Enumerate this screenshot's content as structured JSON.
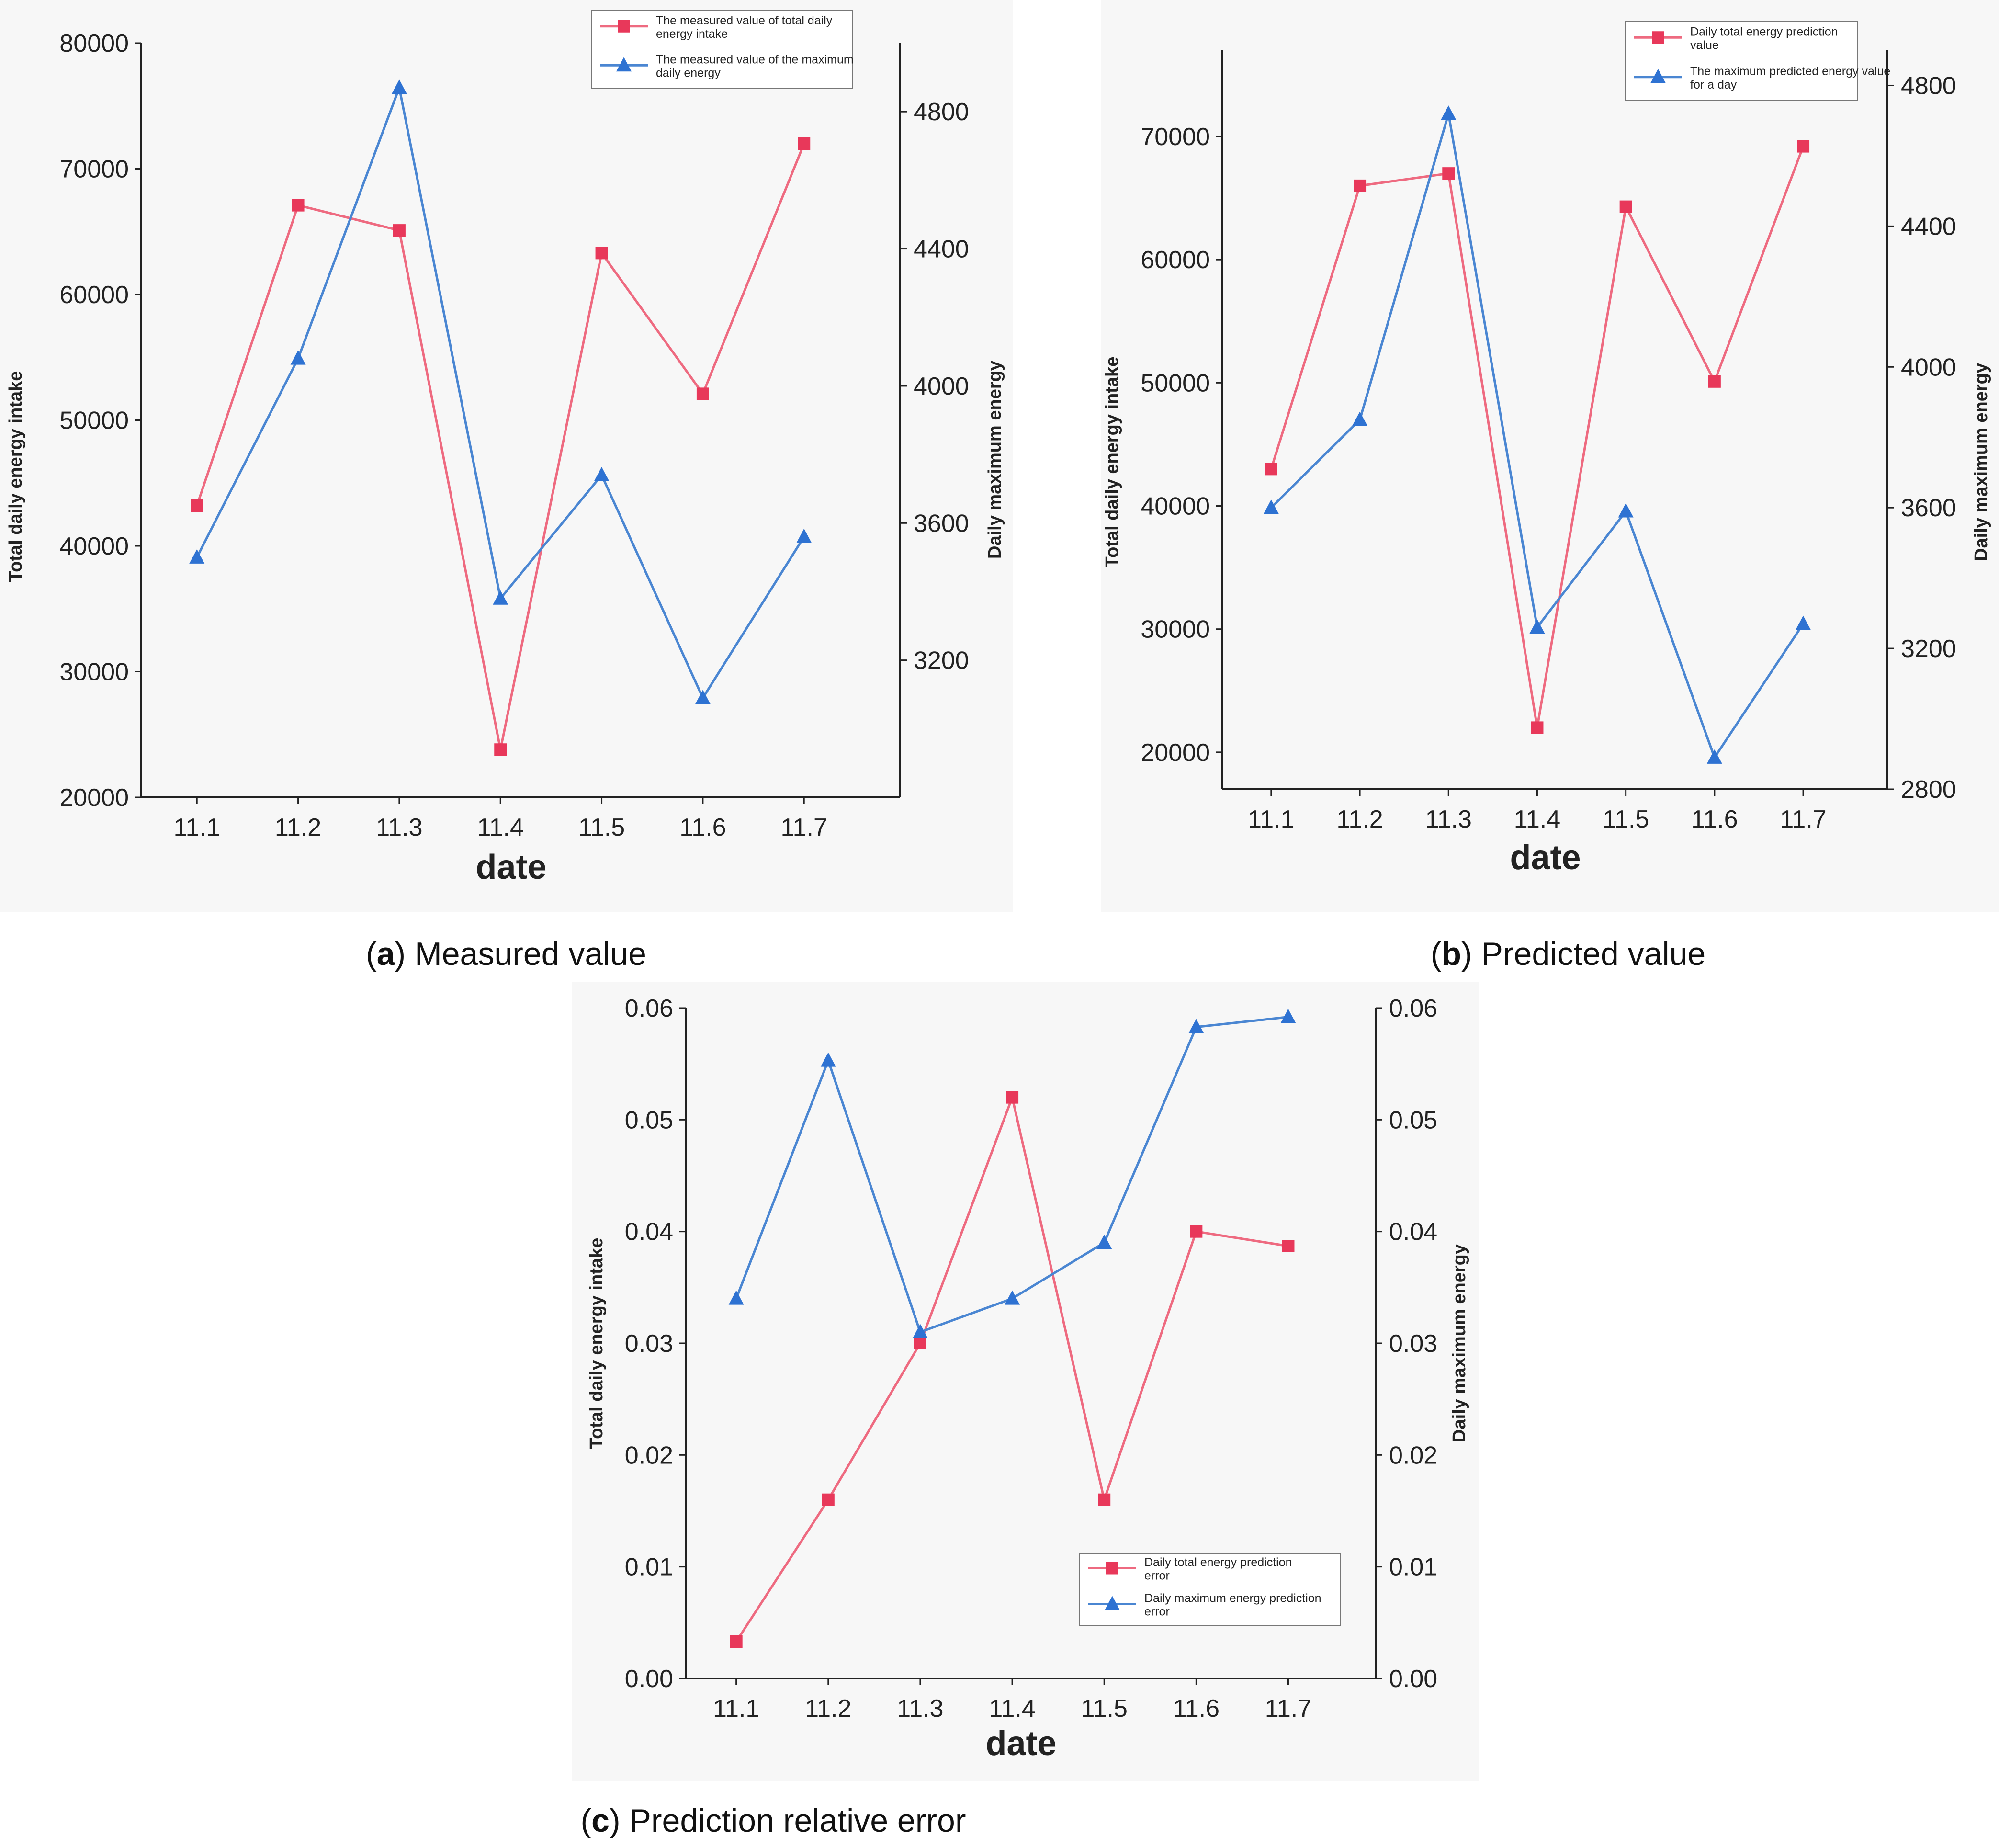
{
  "colors": {
    "series1": "#ee6a80",
    "series2": "#4a86d2",
    "marker1": "#e8385a",
    "marker2": "#2e72d2",
    "panel": "#f7f7f7",
    "axis": "#222222"
  },
  "chart_data": [
    {
      "type": "line",
      "panel_tag": "a",
      "caption": "Measured value",
      "xlabel": "date",
      "ylabel": "Total daily energy intake",
      "y2label": "Daily maximum energy",
      "categories": [
        "11.1",
        "11.2",
        "11.3",
        "11.4",
        "11.5",
        "11.6",
        "11.7"
      ],
      "ylim": [
        20000,
        80000
      ],
      "yticks": [
        "20000",
        "30000",
        "40000",
        "50000",
        "60000",
        "70000",
        "80000"
      ],
      "y2lim": [
        2800,
        5000
      ],
      "y2ticks": [
        "3200",
        "3600",
        "4000",
        "4400",
        "4800"
      ],
      "legend_position": "top-right",
      "series": [
        {
          "name": "The measured value of total daily energy intake",
          "axis": "left",
          "marker": "square",
          "values": [
            43200,
            67100,
            65100,
            23800,
            63300,
            52100,
            72000
          ]
        },
        {
          "name": "The measured value of the maximum daily energy",
          "axis": "right",
          "marker": "triangle",
          "values": [
            3500,
            4080,
            4870,
            3380,
            3740,
            3090,
            3560
          ]
        }
      ]
    },
    {
      "type": "line",
      "panel_tag": "b",
      "caption": "Predicted value",
      "xlabel": "date",
      "ylabel": "Total daily energy intake",
      "y2label": "Daily maximum energy",
      "categories": [
        "11.1",
        "11.2",
        "11.3",
        "11.4",
        "11.5",
        "11.6",
        "11.7"
      ],
      "ylim": [
        17000,
        77000
      ],
      "yticks": [
        "20000",
        "30000",
        "40000",
        "50000",
        "60000",
        "70000"
      ],
      "y2lim": [
        2800,
        4900
      ],
      "y2ticks": [
        "2800",
        "3200",
        "3600",
        "4000",
        "4400",
        "4800"
      ],
      "legend_position": "top-right",
      "series": [
        {
          "name": "Daily total energy prediction value",
          "axis": "left",
          "marker": "square",
          "values": [
            43000,
            66000,
            67000,
            22000,
            64300,
            50100,
            69200
          ]
        },
        {
          "name": "The maximum predicted energy value for a day",
          "axis": "right",
          "marker": "triangle",
          "values": [
            3600,
            3850,
            4720,
            3260,
            3590,
            2890,
            3270
          ]
        }
      ]
    },
    {
      "type": "line",
      "panel_tag": "c",
      "caption": "Prediction relative error",
      "xlabel": "date",
      "ylabel": "Total daily energy intake",
      "y2label": "Daily maximum energy",
      "categories": [
        "11.1",
        "11.2",
        "11.3",
        "11.4",
        "11.5",
        "11.6",
        "11.7"
      ],
      "ylim": [
        0,
        0.06
      ],
      "yticks": [
        "0.00",
        "0.01",
        "0.02",
        "0.03",
        "0.04",
        "0.05",
        "0.06"
      ],
      "y2lim": [
        0,
        0.06
      ],
      "y2ticks": [
        "0.00",
        "0.01",
        "0.02",
        "0.03",
        "0.04",
        "0.05",
        "0.06"
      ],
      "legend_position": "bottom-right",
      "series": [
        {
          "name": "Daily total energy prediction error",
          "axis": "left",
          "marker": "square",
          "values": [
            0.0033,
            0.016,
            0.03,
            0.052,
            0.016,
            0.04,
            0.0387
          ]
        },
        {
          "name": "Daily maximum energy prediction error",
          "axis": "right",
          "marker": "triangle",
          "values": [
            0.034,
            0.0553,
            0.031,
            0.034,
            0.039,
            0.0583,
            0.0592
          ]
        }
      ]
    }
  ]
}
